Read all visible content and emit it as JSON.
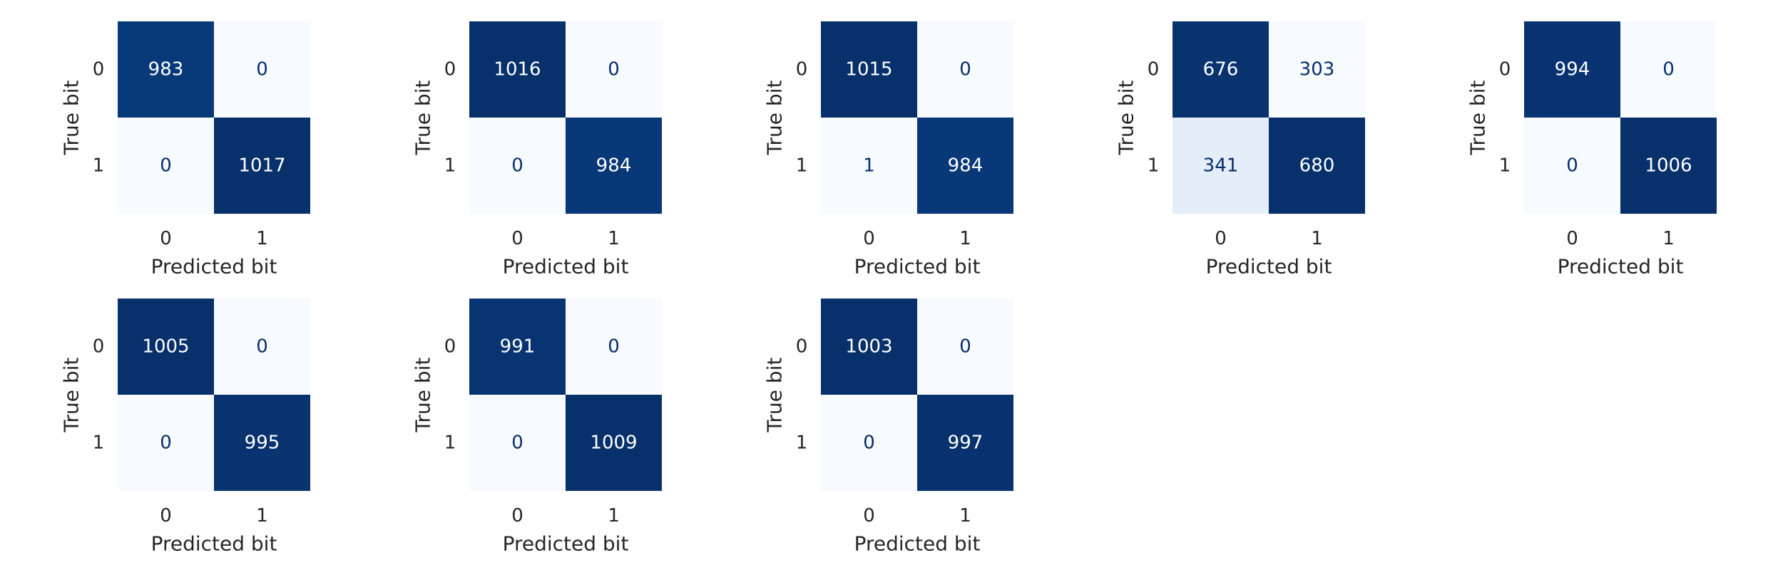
{
  "chart_data": {
    "type": "heatmap",
    "colormap": "Blues",
    "xlabel": "Predicted bit",
    "ylabel": "True bit",
    "xticks": [
      "0",
      "1"
    ],
    "yticks": [
      "0",
      "1"
    ],
    "colors": {
      "text_dark": "#08306b",
      "text_light": "#ffffff",
      "label": "#262626"
    },
    "matrices": [
      [
        [
          983,
          0
        ],
        [
          0,
          1017
        ]
      ],
      [
        [
          1016,
          0
        ],
        [
          0,
          984
        ]
      ],
      [
        [
          1015,
          0
        ],
        [
          1,
          984
        ]
      ],
      [
        [
          676,
          303
        ],
        [
          341,
          680
        ]
      ],
      [
        [
          994,
          0
        ],
        [
          0,
          1006
        ]
      ],
      [
        [
          1005,
          0
        ],
        [
          0,
          995
        ]
      ],
      [
        [
          991,
          0
        ],
        [
          0,
          1009
        ]
      ],
      [
        [
          1003,
          0
        ],
        [
          0,
          997
        ]
      ]
    ]
  }
}
